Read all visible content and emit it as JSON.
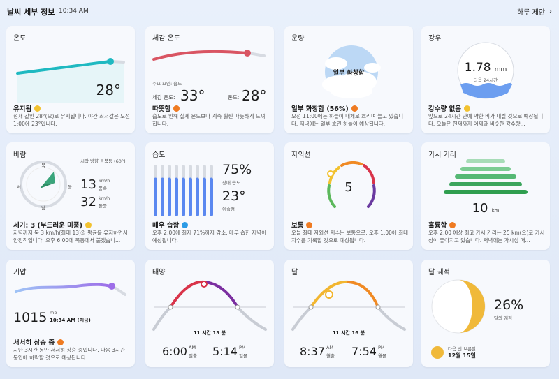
{
  "header": {
    "title": "날씨 세부 정보",
    "time": "10:34 AM",
    "daily_suggestion": "하루 제안",
    "chevron": "chevron-right-icon"
  },
  "temperature": {
    "title": "온도",
    "value": "28°",
    "status": "유지됨",
    "desc": "현재 같인 28°(으)로 유지됩니다. 야간 최저값은 오전 1:00에 23°입니다."
  },
  "feels_like": {
    "title": "체감 온도",
    "primary_factor": "주요 요인: 습도",
    "feels_label": "체감 온도:",
    "feels_value": "33°",
    "temp_label": "온도:",
    "temp_value": "28°",
    "status": "따뜻함",
    "desc": "습도로 인해 실제 온도보다 계속 훨씬 따뜻하게 느껴집니다."
  },
  "cloud_cover": {
    "title": "운량",
    "center_label": "일부 화창함",
    "status": "일부 화창함 (56%)",
    "desc": "오전 11:00에는 하늘이 대체로 흐리며 늘고 있습니다. 저녁에는 일부 흐린 하늘이 예상됩니다."
  },
  "precipitation": {
    "title": "강우",
    "value": "1.78",
    "unit": "mm",
    "period": "다음 24시간",
    "status": "강수량 없음",
    "desc": "앞으로 24시간 안에 약한 비가 내릴 것으로 예상됩니다. 오늘은 현재까지 어제와 비슷한 강수량..."
  },
  "wind": {
    "title": "바람",
    "start_dir": "시작 방향 동북동 (60°)",
    "wind_value": "13",
    "wind_unit": "km/h",
    "wind_label": "풍속",
    "gust_value": "32",
    "gust_unit": "km/h",
    "gust_label": "돌풍",
    "compass": {
      "n": "북",
      "e": "동",
      "s": "남",
      "w": "서"
    },
    "status": "세기: 3 (부드러운 미풍)",
    "desc": "저녁까지 북 3 km/h(최대 13)의 평균을 유지하면서 안정적입니다. 오후 6:00에 북동에서 불겠습니..."
  },
  "humidity": {
    "title": "습도",
    "value": "75%",
    "value_label": "상대 습도",
    "dew": "23°",
    "dew_label": "이슬점",
    "status": "매우 습함",
    "desc": "오후 2:00에 최저 71%까지 감소. 매우 습한 저녁이 예상됩니다."
  },
  "uv": {
    "title": "자외선",
    "value": "5",
    "status": "보통",
    "desc": "오늘 최대 자외선 지수는 보통으로, 오후 1:00에 최대 지수를 기록할 것으로 예상됩니다."
  },
  "visibility": {
    "title": "가시 거리",
    "value": "10",
    "unit": "km",
    "status": "훌륭함",
    "desc": "오후 2:00 예상 최고 가시 거리는 25 km(으)로 가시성이 좋아지고 있습니다. 저녁에는 가시성 매..."
  },
  "pressure": {
    "title": "기압",
    "value": "1015",
    "unit": "mb",
    "time": "10:34 AM (지금)",
    "status": "서서히 상승 중",
    "desc": "지난 3시간 동안 서서히 상승 중입니다. 다음 3시간 동안에 하락할 것으로 예상됩니다."
  },
  "sun": {
    "title": "태양",
    "duration": "11 시간 13 분",
    "rise_time": "6:00",
    "rise_ampm": "AM",
    "rise_label": "일출",
    "set_time": "5:14",
    "set_ampm": "PM",
    "set_label": "일몰"
  },
  "moon": {
    "title": "달",
    "duration": "11 시간 16 분",
    "rise_time": "8:37",
    "rise_ampm": "AM",
    "rise_label": "월출",
    "set_time": "7:54",
    "set_ampm": "PM",
    "set_label": "월몰"
  },
  "moon_phase": {
    "title": "달 궤적",
    "percent": "26%",
    "percent_label": "달의 궤적",
    "next_full_label": "다음 번 보름달",
    "next_full_date": "12월 15일",
    "illumination_fraction": 0.26
  },
  "colors": {
    "temp_line": "#1fb9c1",
    "feels_line": "#d95563",
    "humidity_bar": "#5b88f0",
    "visibility_bar": "#2f9e4f",
    "pressure_line": "#8b8cf0",
    "moon_yellow": "#f0b93a"
  }
}
